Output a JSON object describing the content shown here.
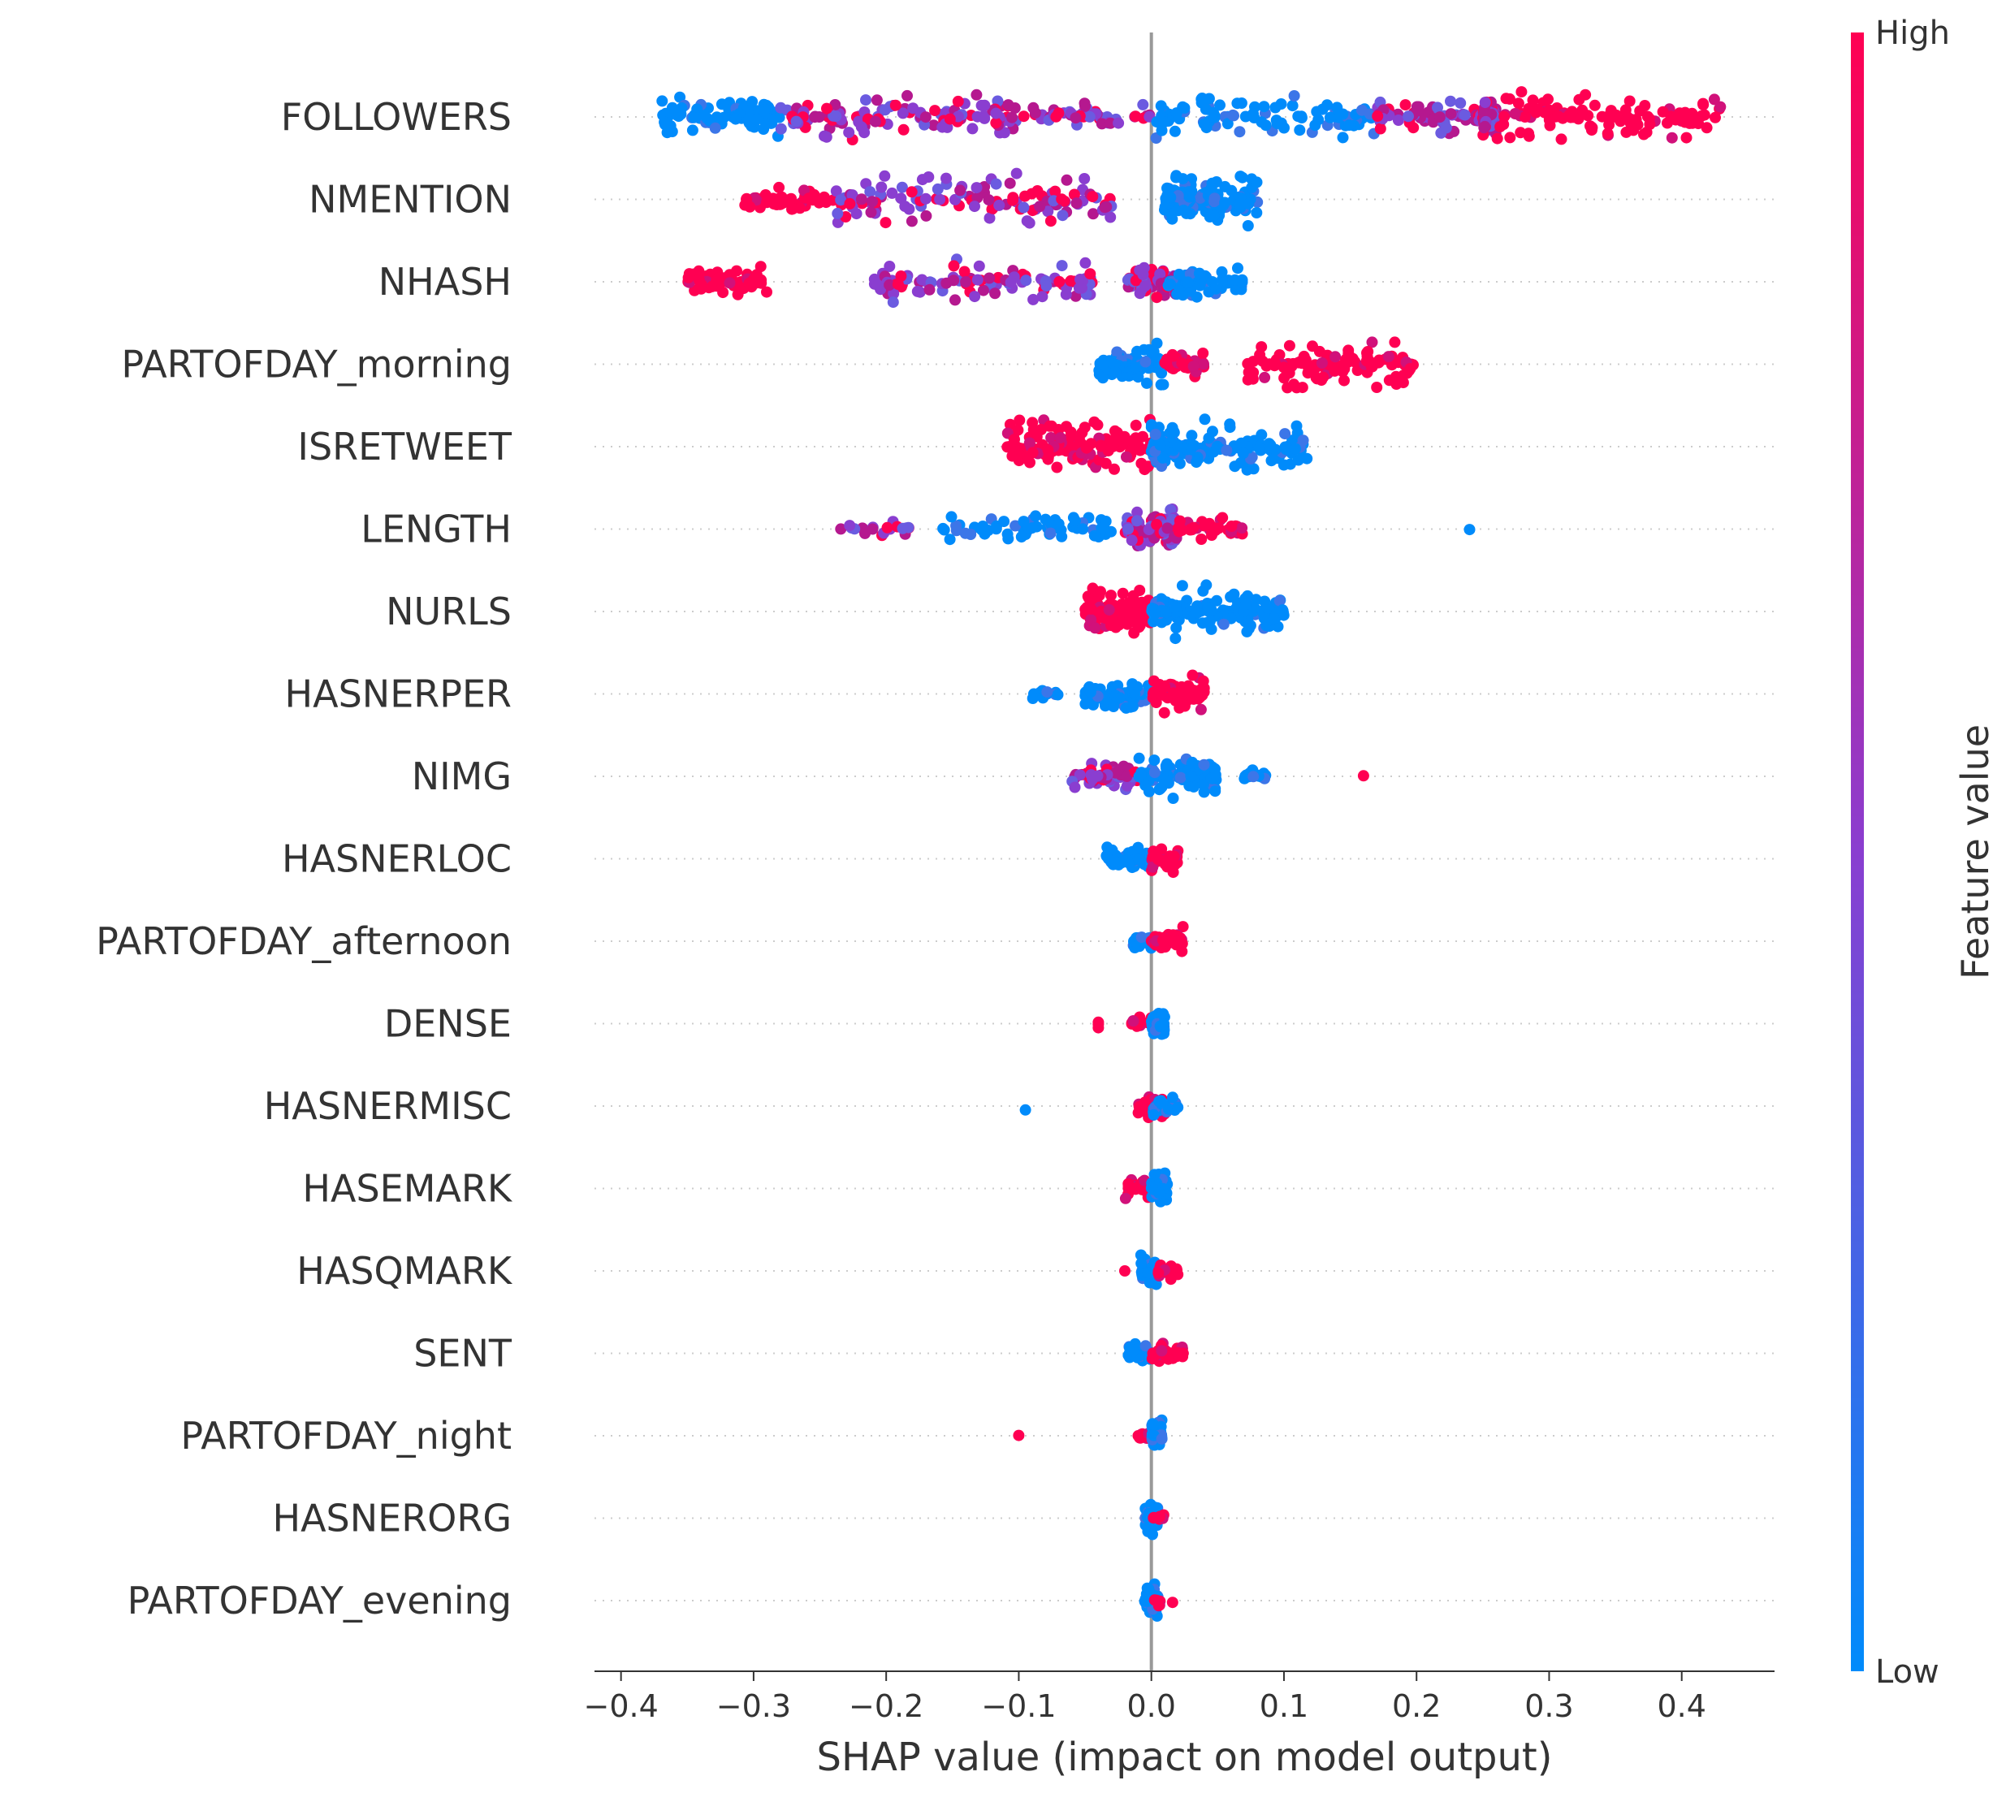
{
  "chart_data": {
    "type": "scatter",
    "subtype": "shap-beeswarm-summary",
    "xlabel": "SHAP value (impact on model output)",
    "xlim": [
      -0.42,
      0.47
    ],
    "xticks": [
      -0.4,
      -0.3,
      -0.2,
      -0.1,
      0.0,
      0.1,
      0.2,
      0.3,
      0.4
    ],
    "xtick_labels": [
      "−0.4",
      "−0.3",
      "−0.2",
      "−0.1",
      "0.0",
      "0.1",
      "0.2",
      "0.3",
      "0.4"
    ],
    "colorbar": {
      "title": "Feature value",
      "high_label": "High",
      "low_label": "Low",
      "high_color": "#ff0052",
      "low_color": "#008bfb"
    },
    "features": [
      {
        "name": "FOLLOWERS",
        "clusters": [
          {
            "from": -0.37,
            "to": -0.28,
            "value": "low",
            "n": 90
          },
          {
            "from": -0.28,
            "to": -0.1,
            "value": "mid",
            "n": 120
          },
          {
            "from": -0.1,
            "to": 0.0,
            "value": "mid",
            "n": 50
          },
          {
            "from": 0.0,
            "to": 0.17,
            "value": "low",
            "n": 100
          },
          {
            "from": 0.17,
            "to": 0.25,
            "value": "mid",
            "n": 70
          },
          {
            "from": 0.25,
            "to": 0.26,
            "value": "mid",
            "n": 80
          },
          {
            "from": 0.26,
            "to": 0.43,
            "value": "high",
            "n": 110
          }
        ]
      },
      {
        "name": "NMENTION",
        "clusters": [
          {
            "from": -0.31,
            "to": -0.24,
            "value": "high",
            "n": 50
          },
          {
            "from": -0.24,
            "to": -0.03,
            "value": "mid",
            "n": 120
          },
          {
            "from": 0.01,
            "to": 0.08,
            "value": "low",
            "n": 110
          },
          {
            "from": 0.01,
            "to": 0.03,
            "value": "low",
            "n": 50
          }
        ]
      },
      {
        "name": "NHASH",
        "clusters": [
          {
            "from": -0.35,
            "to": -0.29,
            "value": "high",
            "n": 60
          },
          {
            "from": -0.21,
            "to": -0.04,
            "value": "mid",
            "n": 100
          },
          {
            "from": -0.02,
            "to": 0.02,
            "value": "mid",
            "n": 70
          },
          {
            "from": 0.01,
            "to": 0.07,
            "value": "low",
            "n": 60
          }
        ]
      },
      {
        "name": "PARTOFDAY_morning",
        "clusters": [
          {
            "from": -0.04,
            "to": 0.01,
            "value": "low",
            "n": 90
          },
          {
            "from": 0.01,
            "to": 0.04,
            "value": "high",
            "n": 50
          },
          {
            "from": 0.07,
            "to": 0.2,
            "value": "high",
            "n": 110
          }
        ]
      },
      {
        "name": "ISRETWEET",
        "clusters": [
          {
            "from": -0.11,
            "to": 0.0,
            "value": "high",
            "n": 140
          },
          {
            "from": 0.0,
            "to": 0.12,
            "value": "low",
            "n": 120
          },
          {
            "from": 0.0,
            "to": 0.02,
            "value": "low",
            "n": 60
          }
        ]
      },
      {
        "name": "LENGTH",
        "clusters": [
          {
            "from": -0.24,
            "to": -0.18,
            "value": "mid",
            "n": 20
          },
          {
            "from": -0.16,
            "to": -0.03,
            "value": "low",
            "n": 60
          },
          {
            "from": -0.02,
            "to": 0.02,
            "value": "mid",
            "n": 90
          },
          {
            "from": 0.02,
            "to": 0.07,
            "value": "high",
            "n": 40
          },
          {
            "from": 0.24,
            "to": 0.24,
            "value": "low",
            "n": 1
          }
        ]
      },
      {
        "name": "NURLS",
        "clusters": [
          {
            "from": -0.05,
            "to": 0.0,
            "value": "high",
            "n": 100
          },
          {
            "from": 0.0,
            "to": 0.1,
            "value": "low",
            "n": 120
          },
          {
            "from": 0.0,
            "to": 0.02,
            "value": "low",
            "n": 50
          }
        ]
      },
      {
        "name": "HASNERPER",
        "clusters": [
          {
            "from": -0.09,
            "to": -0.07,
            "value": "low",
            "n": 12
          },
          {
            "from": -0.05,
            "to": 0.0,
            "value": "low",
            "n": 70
          },
          {
            "from": 0.0,
            "to": 0.04,
            "value": "high",
            "n": 80
          }
        ]
      },
      {
        "name": "NIMG",
        "clusters": [
          {
            "from": -0.06,
            "to": -0.01,
            "value": "mid",
            "n": 60
          },
          {
            "from": -0.01,
            "to": 0.05,
            "value": "low",
            "n": 90
          },
          {
            "from": 0.07,
            "to": 0.09,
            "value": "low",
            "n": 15
          },
          {
            "from": 0.16,
            "to": 0.16,
            "value": "high",
            "n": 1
          }
        ]
      },
      {
        "name": "HASNERLOC",
        "clusters": [
          {
            "from": -0.035,
            "to": 0.0,
            "value": "low",
            "n": 50
          },
          {
            "from": 0.0,
            "to": 0.02,
            "value": "high",
            "n": 50
          }
        ]
      },
      {
        "name": "PARTOFDAY_afternoon",
        "clusters": [
          {
            "from": -0.015,
            "to": 0.0,
            "value": "low",
            "n": 30
          },
          {
            "from": 0.0,
            "to": 0.025,
            "value": "high",
            "n": 50
          }
        ]
      },
      {
        "name": "DENSE",
        "clusters": [
          {
            "from": -0.04,
            "to": -0.04,
            "value": "high",
            "n": 3
          },
          {
            "from": -0.015,
            "to": 0.0,
            "value": "high",
            "n": 15
          },
          {
            "from": 0.0,
            "to": 0.01,
            "value": "low",
            "n": 60
          }
        ]
      },
      {
        "name": "HASNERMISC",
        "clusters": [
          {
            "from": -0.095,
            "to": -0.095,
            "value": "low",
            "n": 1
          },
          {
            "from": -0.01,
            "to": 0.01,
            "value": "high",
            "n": 50
          },
          {
            "from": 0.0,
            "to": 0.02,
            "value": "low",
            "n": 30
          }
        ]
      },
      {
        "name": "HASEMARK",
        "clusters": [
          {
            "from": -0.02,
            "to": 0.0,
            "value": "high",
            "n": 30
          },
          {
            "from": 0.0,
            "to": 0.012,
            "value": "low",
            "n": 60
          }
        ]
      },
      {
        "name": "HASQMARK",
        "clusters": [
          {
            "from": -0.02,
            "to": -0.02,
            "value": "high",
            "n": 1
          },
          {
            "from": -0.008,
            "to": 0.005,
            "value": "low",
            "n": 60
          },
          {
            "from": 0.005,
            "to": 0.02,
            "value": "high",
            "n": 20
          }
        ]
      },
      {
        "name": "SENT",
        "clusters": [
          {
            "from": -0.018,
            "to": 0.0,
            "value": "low",
            "n": 40
          },
          {
            "from": 0.0,
            "to": 0.025,
            "value": "high",
            "n": 40
          }
        ]
      },
      {
        "name": "PARTOFDAY_night",
        "clusters": [
          {
            "from": -0.1,
            "to": -0.1,
            "value": "high",
            "n": 1
          },
          {
            "from": -0.01,
            "to": 0.0,
            "value": "high",
            "n": 15
          },
          {
            "from": 0.0,
            "to": 0.008,
            "value": "low",
            "n": 60
          }
        ]
      },
      {
        "name": "HASNERORG",
        "clusters": [
          {
            "from": -0.005,
            "to": 0.005,
            "value": "low",
            "n": 60
          },
          {
            "from": 0.0,
            "to": 0.01,
            "value": "high",
            "n": 6
          }
        ]
      },
      {
        "name": "PARTOFDAY_evening",
        "clusters": [
          {
            "from": -0.005,
            "to": 0.005,
            "value": "low",
            "n": 60
          },
          {
            "from": 0.0,
            "to": 0.008,
            "value": "high",
            "n": 6
          },
          {
            "from": 0.016,
            "to": 0.016,
            "value": "high",
            "n": 1
          }
        ]
      }
    ]
  }
}
